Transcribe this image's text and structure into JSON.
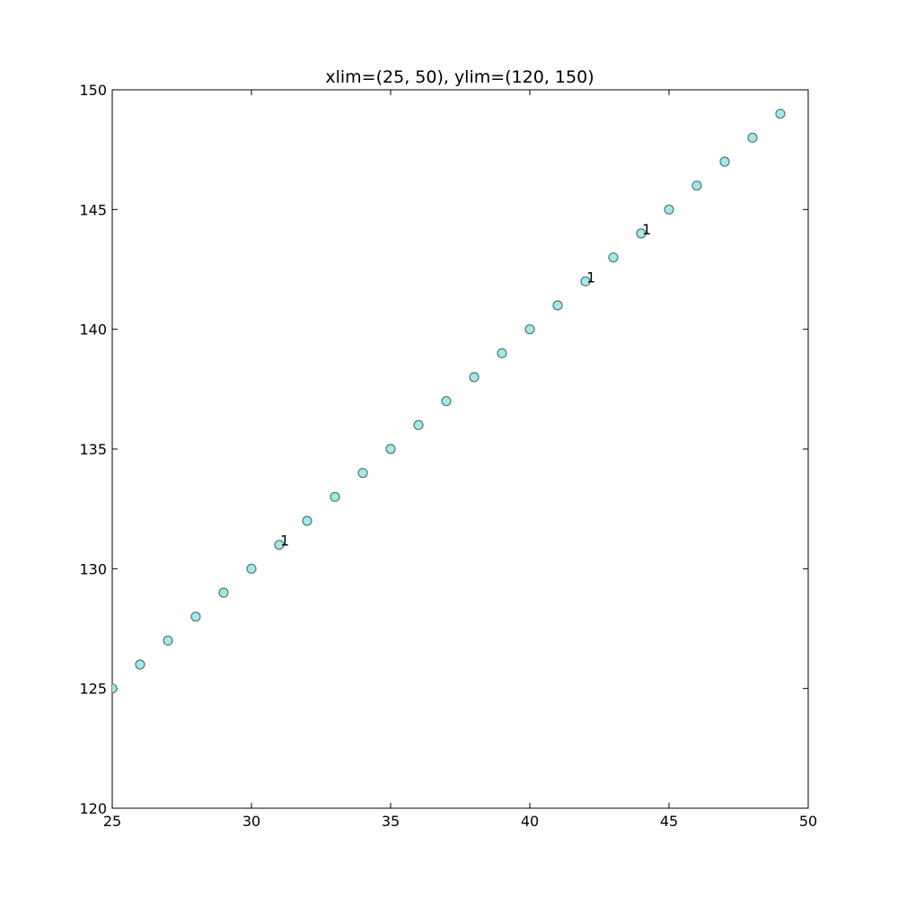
{
  "chart_data": {
    "type": "scatter",
    "title": "xlim=(25, 50), ylim=(120, 150)",
    "xlabel": "",
    "ylabel": "",
    "xlim": [
      25,
      50
    ],
    "ylim": [
      120,
      150
    ],
    "grid": false,
    "x_ticks": [
      25,
      30,
      35,
      40,
      45,
      50
    ],
    "y_ticks": [
      120,
      125,
      130,
      135,
      140,
      145,
      150
    ],
    "marker_color": "#a8e6e6",
    "marker_edge_color": "#4a7a7a",
    "series": [
      {
        "x": [
          25,
          26,
          27,
          28,
          29,
          30,
          31,
          32,
          33,
          34,
          35,
          36,
          37,
          38,
          39,
          40,
          41,
          42,
          43,
          44,
          45,
          46,
          47,
          48,
          49
        ],
        "y": [
          125,
          126,
          127,
          128,
          129,
          130,
          131,
          132,
          133,
          134,
          135,
          136,
          137,
          138,
          139,
          140,
          141,
          142,
          143,
          144,
          145,
          146,
          147,
          148,
          149
        ]
      }
    ],
    "annotations": [
      {
        "x": 31,
        "y": 131,
        "text": "1"
      },
      {
        "x": 42,
        "y": 142,
        "text": "1"
      },
      {
        "x": 44,
        "y": 144,
        "text": "1"
      }
    ]
  }
}
